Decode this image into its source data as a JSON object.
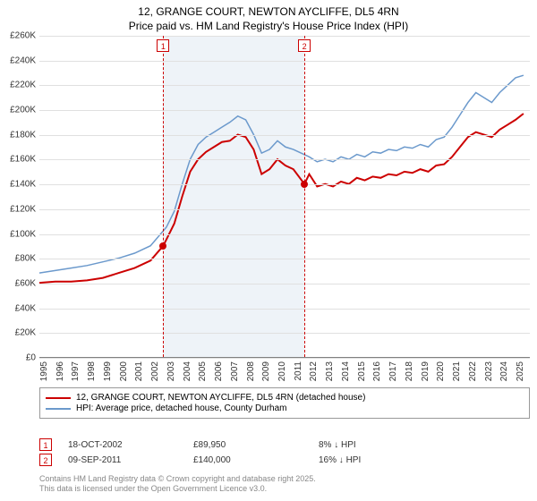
{
  "title_line1": "12, GRANGE COURT, NEWTON AYCLIFFE, DL5 4RN",
  "title_line2": "Price paid vs. HM Land Registry's House Price Index (HPI)",
  "chart": {
    "type": "line",
    "background_color": "#ffffff",
    "grid_color": "#e0e0e0",
    "band_color": "#eef3f8",
    "band_border_color": "#cc0000",
    "x_start": 1995,
    "x_end": 2025.9,
    "x_ticks": [
      1995,
      1996,
      1997,
      1998,
      1999,
      2000,
      2001,
      2002,
      2003,
      2004,
      2005,
      2006,
      2007,
      2008,
      2009,
      2010,
      2011,
      2012,
      2013,
      2014,
      2015,
      2016,
      2017,
      2018,
      2019,
      2020,
      2021,
      2022,
      2023,
      2024,
      2025
    ],
    "y_min": 0,
    "y_max": 260,
    "y_ticks": [
      0,
      20,
      40,
      60,
      80,
      100,
      120,
      140,
      160,
      180,
      200,
      220,
      240,
      260
    ],
    "y_tick_labels": [
      "£0",
      "£20K",
      "£40K",
      "£60K",
      "£80K",
      "£100K",
      "£120K",
      "£140K",
      "£160K",
      "£180K",
      "£200K",
      "£220K",
      "£240K",
      "£260K"
    ],
    "band_x1": 2002.8,
    "band_x2": 2011.7,
    "series": [
      {
        "name": "price_paid",
        "label": "12, GRANGE COURT, NEWTON AYCLIFFE, DL5 4RN (detached house)",
        "color": "#cc0000",
        "line_width": 2,
        "points": [
          [
            1995,
            60
          ],
          [
            1996,
            61
          ],
          [
            1997,
            61
          ],
          [
            1998,
            62
          ],
          [
            1999,
            64
          ],
          [
            2000,
            68
          ],
          [
            2001,
            72
          ],
          [
            2002,
            78
          ],
          [
            2002.8,
            89.95
          ],
          [
            2003,
            95
          ],
          [
            2003.5,
            108
          ],
          [
            2004,
            130
          ],
          [
            2004.5,
            150
          ],
          [
            2005,
            160
          ],
          [
            2005.5,
            166
          ],
          [
            2006,
            170
          ],
          [
            2006.5,
            174
          ],
          [
            2007,
            175
          ],
          [
            2007.5,
            180
          ],
          [
            2008,
            178
          ],
          [
            2008.5,
            168
          ],
          [
            2009,
            148
          ],
          [
            2009.5,
            152
          ],
          [
            2010,
            160
          ],
          [
            2010.5,
            155
          ],
          [
            2011,
            152
          ],
          [
            2011.7,
            140
          ],
          [
            2012,
            148
          ],
          [
            2012.5,
            138
          ],
          [
            2013,
            140
          ],
          [
            2013.5,
            138
          ],
          [
            2014,
            142
          ],
          [
            2014.5,
            140
          ],
          [
            2015,
            145
          ],
          [
            2015.5,
            143
          ],
          [
            2016,
            146
          ],
          [
            2016.5,
            145
          ],
          [
            2017,
            148
          ],
          [
            2017.5,
            147
          ],
          [
            2018,
            150
          ],
          [
            2018.5,
            149
          ],
          [
            2019,
            152
          ],
          [
            2019.5,
            150
          ],
          [
            2020,
            155
          ],
          [
            2020.5,
            156
          ],
          [
            2021,
            162
          ],
          [
            2021.5,
            170
          ],
          [
            2022,
            178
          ],
          [
            2022.5,
            182
          ],
          [
            2023,
            180
          ],
          [
            2023.5,
            178
          ],
          [
            2024,
            184
          ],
          [
            2024.5,
            188
          ],
          [
            2025,
            192
          ],
          [
            2025.5,
            197
          ]
        ]
      },
      {
        "name": "hpi",
        "label": "HPI: Average price, detached house, County Durham",
        "color": "#6b99cc",
        "line_width": 1.5,
        "points": [
          [
            1995,
            68
          ],
          [
            1996,
            70
          ],
          [
            1997,
            72
          ],
          [
            1998,
            74
          ],
          [
            1999,
            77
          ],
          [
            2000,
            80
          ],
          [
            2001,
            84
          ],
          [
            2002,
            90
          ],
          [
            2003,
            105
          ],
          [
            2003.5,
            118
          ],
          [
            2004,
            140
          ],
          [
            2004.5,
            160
          ],
          [
            2005,
            172
          ],
          [
            2005.5,
            178
          ],
          [
            2006,
            182
          ],
          [
            2006.5,
            186
          ],
          [
            2007,
            190
          ],
          [
            2007.5,
            195
          ],
          [
            2008,
            192
          ],
          [
            2008.5,
            180
          ],
          [
            2009,
            165
          ],
          [
            2009.5,
            168
          ],
          [
            2010,
            175
          ],
          [
            2010.5,
            170
          ],
          [
            2011,
            168
          ],
          [
            2011.5,
            165
          ],
          [
            2012,
            162
          ],
          [
            2012.5,
            158
          ],
          [
            2013,
            160
          ],
          [
            2013.5,
            158
          ],
          [
            2014,
            162
          ],
          [
            2014.5,
            160
          ],
          [
            2015,
            164
          ],
          [
            2015.5,
            162
          ],
          [
            2016,
            166
          ],
          [
            2016.5,
            165
          ],
          [
            2017,
            168
          ],
          [
            2017.5,
            167
          ],
          [
            2018,
            170
          ],
          [
            2018.5,
            169
          ],
          [
            2019,
            172
          ],
          [
            2019.5,
            170
          ],
          [
            2020,
            176
          ],
          [
            2020.5,
            178
          ],
          [
            2021,
            186
          ],
          [
            2021.5,
            196
          ],
          [
            2022,
            206
          ],
          [
            2022.5,
            214
          ],
          [
            2023,
            210
          ],
          [
            2023.5,
            206
          ],
          [
            2024,
            214
          ],
          [
            2024.5,
            220
          ],
          [
            2025,
            226
          ],
          [
            2025.5,
            228
          ]
        ]
      }
    ],
    "sale_points": [
      {
        "num": "1",
        "x": 2002.8,
        "y": 89.95,
        "color": "#cc0000"
      },
      {
        "num": "2",
        "x": 2011.7,
        "y": 140,
        "color": "#cc0000"
      }
    ]
  },
  "sales": [
    {
      "num": "1",
      "date": "18-OCT-2002",
      "price": "£89,950",
      "diff": "8% ↓ HPI"
    },
    {
      "num": "2",
      "date": "09-SEP-2011",
      "price": "£140,000",
      "diff": "16% ↓ HPI"
    }
  ],
  "footer_line1": "Contains HM Land Registry data © Crown copyright and database right 2025.",
  "footer_line2": "This data is licensed under the Open Government Licence v3.0.",
  "label_fontsize": 10,
  "title_fontsize": 12
}
